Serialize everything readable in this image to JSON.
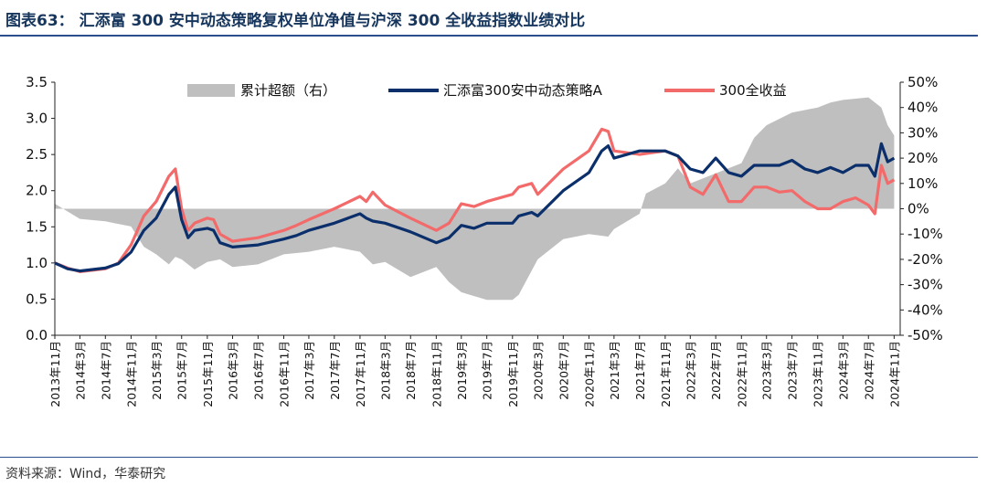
{
  "title": "图表63： 汇添富 300 安中动态策略复权单位净值与沪深 300 全收益指数业绩对比",
  "source": "资料来源：Wind，华泰研究",
  "colors": {
    "excess": "#bfbfbf",
    "fund": "#0b2f6b",
    "index": "#f36a6a",
    "rule": "#2b4e8c"
  },
  "chart_data": {
    "type": "line",
    "title": "",
    "xlabel": "",
    "ylabel": "",
    "ylim": [
      0,
      3.5
    ],
    "y2lim": [
      -0.5,
      0.5
    ],
    "yticks": [
      "0.0",
      "0.5",
      "1.0",
      "1.5",
      "2.0",
      "2.5",
      "3.0",
      "3.5"
    ],
    "y2ticks": [
      "-50%",
      "-40%",
      "-30%",
      "-20%",
      "-10%",
      "0%",
      "10%",
      "20%",
      "30%",
      "40%",
      "50%"
    ],
    "xticks": [
      "2013年11月",
      "2014年3月",
      "2014年7月",
      "2014年11月",
      "2015年3月",
      "2015年7月",
      "2015年11月",
      "2016年3月",
      "2016年7月",
      "2016年11月",
      "2017年3月",
      "2017年7月",
      "2017年11月",
      "2018年3月",
      "2018年7月",
      "2018年11月",
      "2019年3月",
      "2019年7月",
      "2019年11月",
      "2020年3月",
      "2020年7月",
      "2020年11月",
      "2021年3月",
      "2021年7月",
      "2021年11月",
      "2022年3月",
      "2022年7月",
      "2022年11月",
      "2023年3月",
      "2023年7月",
      "2023年11月",
      "2024年3月",
      "2024年7月",
      "2024年11月"
    ],
    "legend_position": "top",
    "series": [
      {
        "name": "累计超额（右）",
        "kind": "area",
        "axis": "right",
        "x": [
          "2013-11",
          "2014-03",
          "2014-07",
          "2014-11",
          "2015-01",
          "2015-03",
          "2015-05",
          "2015-06",
          "2015-07",
          "2015-09",
          "2015-11",
          "2016-01",
          "2016-03",
          "2016-07",
          "2016-11",
          "2017-03",
          "2017-07",
          "2017-11",
          "2018-01",
          "2018-03",
          "2018-07",
          "2018-11",
          "2019-01",
          "2019-03",
          "2019-07",
          "2019-11",
          "2019-12",
          "2020-03",
          "2020-07",
          "2020-11",
          "2021-02",
          "2021-03",
          "2021-07",
          "2021-08",
          "2021-11",
          "2022-01",
          "2022-03",
          "2022-07",
          "2022-11",
          "2023-01",
          "2023-03",
          "2023-07",
          "2023-11",
          "2024-01",
          "2024-03",
          "2024-07",
          "2024-09",
          "2024-10",
          "2024-11"
        ],
        "values": [
          0.02,
          -0.04,
          -0.05,
          -0.07,
          -0.15,
          -0.18,
          -0.22,
          -0.19,
          -0.2,
          -0.24,
          -0.21,
          -0.2,
          -0.23,
          -0.22,
          -0.18,
          -0.17,
          -0.15,
          -0.17,
          -0.22,
          -0.21,
          -0.27,
          -0.23,
          -0.29,
          -0.33,
          -0.36,
          -0.36,
          -0.34,
          -0.2,
          -0.12,
          -0.1,
          -0.11,
          -0.08,
          -0.02,
          0.06,
          0.1,
          0.16,
          0.1,
          0.14,
          0.18,
          0.28,
          0.33,
          0.38,
          0.4,
          0.42,
          0.43,
          0.44,
          0.4,
          0.33,
          0.29
        ]
      },
      {
        "name": "汇添富300安中动态策略A",
        "kind": "line",
        "axis": "left",
        "x": [
          "2013-11",
          "2014-01",
          "2014-03",
          "2014-07",
          "2014-09",
          "2014-11",
          "2015-01",
          "2015-03",
          "2015-05",
          "2015-06",
          "2015-07",
          "2015-08",
          "2015-09",
          "2015-11",
          "2015-12",
          "2016-01",
          "2016-03",
          "2016-07",
          "2016-11",
          "2017-01",
          "2017-03",
          "2017-07",
          "2017-11",
          "2017-12",
          "2018-01",
          "2018-03",
          "2018-07",
          "2018-11",
          "2019-01",
          "2019-03",
          "2019-05",
          "2019-07",
          "2019-11",
          "2019-12",
          "2020-02",
          "2020-03",
          "2020-07",
          "2020-11",
          "2021-01",
          "2021-02",
          "2021-03",
          "2021-07",
          "2021-11",
          "2022-01",
          "2022-03",
          "2022-05",
          "2022-07",
          "2022-09",
          "2022-11",
          "2023-01",
          "2023-03",
          "2023-05",
          "2023-07",
          "2023-09",
          "2023-11",
          "2024-01",
          "2024-03",
          "2024-05",
          "2024-07",
          "2024-08",
          "2024-09",
          "2024-10",
          "2024-11"
        ],
        "values": [
          1.0,
          0.92,
          0.89,
          0.93,
          0.99,
          1.15,
          1.45,
          1.62,
          1.95,
          2.05,
          1.6,
          1.35,
          1.45,
          1.48,
          1.45,
          1.28,
          1.22,
          1.25,
          1.33,
          1.38,
          1.45,
          1.55,
          1.68,
          1.62,
          1.58,
          1.55,
          1.43,
          1.28,
          1.35,
          1.52,
          1.48,
          1.55,
          1.55,
          1.65,
          1.7,
          1.65,
          2.0,
          2.25,
          2.55,
          2.62,
          2.45,
          2.55,
          2.55,
          2.48,
          2.3,
          2.25,
          2.45,
          2.25,
          2.2,
          2.35,
          2.35,
          2.35,
          2.42,
          2.3,
          2.25,
          2.32,
          2.25,
          2.35,
          2.35,
          2.2,
          2.65,
          2.4,
          2.45
        ]
      },
      {
        "name": "300全收益",
        "kind": "line",
        "axis": "left",
        "x": [
          "2013-11",
          "2014-01",
          "2014-03",
          "2014-07",
          "2014-09",
          "2014-11",
          "2015-01",
          "2015-03",
          "2015-05",
          "2015-06",
          "2015-07",
          "2015-08",
          "2015-09",
          "2015-11",
          "2015-12",
          "2016-01",
          "2016-03",
          "2016-07",
          "2016-11",
          "2017-01",
          "2017-03",
          "2017-07",
          "2017-11",
          "2017-12",
          "2018-01",
          "2018-03",
          "2018-07",
          "2018-11",
          "2019-01",
          "2019-03",
          "2019-05",
          "2019-07",
          "2019-11",
          "2019-12",
          "2020-02",
          "2020-03",
          "2020-07",
          "2020-11",
          "2021-01",
          "2021-02",
          "2021-03",
          "2021-07",
          "2021-11",
          "2022-01",
          "2022-03",
          "2022-05",
          "2022-07",
          "2022-09",
          "2022-11",
          "2023-01",
          "2023-03",
          "2023-05",
          "2023-07",
          "2023-09",
          "2023-11",
          "2024-01",
          "2024-03",
          "2024-05",
          "2024-07",
          "2024-08",
          "2024-09",
          "2024-10",
          "2024-11"
        ],
        "values": [
          1.0,
          0.93,
          0.88,
          0.92,
          1.0,
          1.25,
          1.65,
          1.85,
          2.2,
          2.3,
          1.75,
          1.45,
          1.55,
          1.62,
          1.6,
          1.4,
          1.3,
          1.35,
          1.45,
          1.52,
          1.6,
          1.75,
          1.92,
          1.85,
          1.98,
          1.8,
          1.62,
          1.45,
          1.55,
          1.82,
          1.78,
          1.85,
          1.95,
          2.05,
          2.1,
          1.95,
          2.3,
          2.55,
          2.85,
          2.82,
          2.55,
          2.5,
          2.55,
          2.48,
          2.05,
          1.95,
          2.22,
          1.85,
          1.85,
          2.05,
          2.05,
          1.98,
          2.0,
          1.85,
          1.75,
          1.75,
          1.85,
          1.9,
          1.8,
          1.68,
          2.35,
          2.1,
          2.15
        ]
      }
    ]
  }
}
